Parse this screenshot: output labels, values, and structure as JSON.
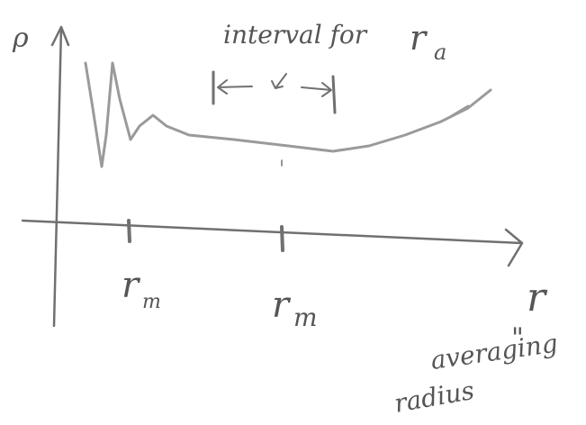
{
  "axes": {
    "y_label": "ρ",
    "x_label": "r"
  },
  "ticks": [
    {
      "symbol": "r",
      "subscript": "m"
    },
    {
      "symbol": "r",
      "subscript": "m"
    }
  ],
  "interval": {
    "text": "interval for",
    "symbol": "r",
    "subscript": "a"
  },
  "note": {
    "ditto": "\"",
    "line1": "averaging",
    "line2": "radius"
  }
}
